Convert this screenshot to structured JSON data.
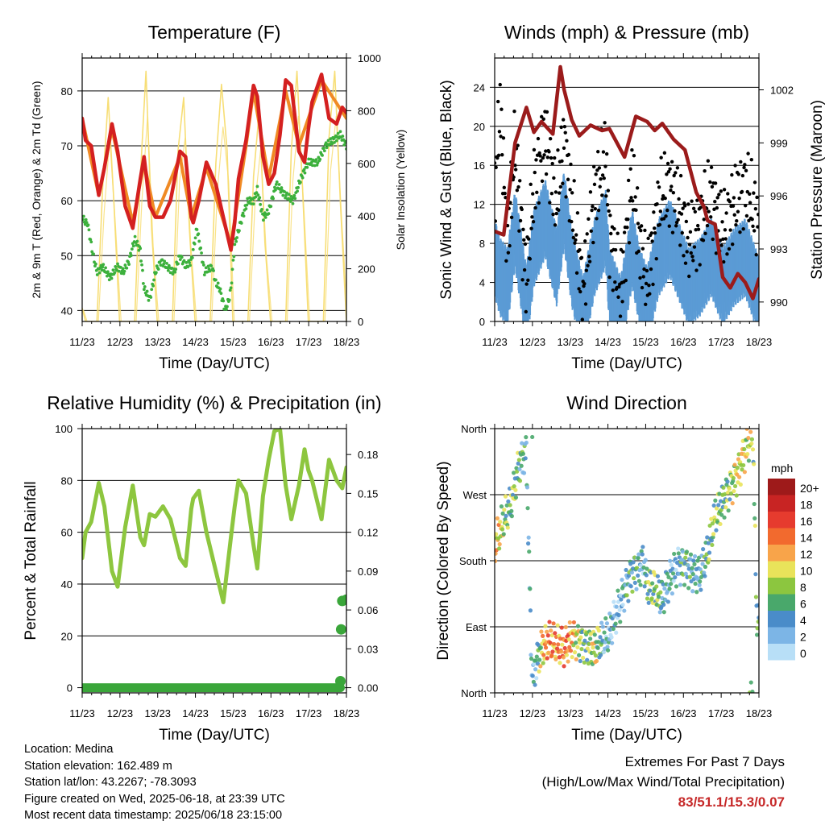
{
  "panels": {
    "temperature": {
      "title": "Temperature (F)",
      "ylabel_left": "2m & 9m T (Red, Orange) & 2m Td (Green)",
      "ylabel_right": "Solar Insolation (Yellow)",
      "xlabel": "Time (Day/UTC)"
    },
    "winds": {
      "title": "Winds (mph) & Pressure (mb)",
      "ylabel_left": "Sonic Wind & Gust (Blue, Black)",
      "ylabel_right": "Station Pressure (Maroon)",
      "xlabel": "Time (Day/UTC)"
    },
    "humidity": {
      "title": "Relative Humidity (%) & Precipitation (in)",
      "ylabel_left": "Percent & Total Rainfall",
      "xlabel": "Time (Day/UTC)"
    },
    "direction": {
      "title": "Wind Direction",
      "ylabel_left": "Direction (Colored By Speed)",
      "xlabel": "Time (Day/UTC)",
      "legend_title": "mph"
    }
  },
  "info": {
    "location": "Location: Medina",
    "elevation": "Station elevation: 162.489 m",
    "latlon": "Station lat/lon: 43.2267; -78.3093",
    "created": "Figure created on Wed, 2025-06-18, at 23:39 UTC",
    "recent": "Most recent data timestamp: 2025/06/18 23:15:00"
  },
  "extremes": {
    "line1": "Extremes For Past 7 Days",
    "line2": "(High/Low/Max Wind/Total Precipitation)",
    "values": "83/51.1/15.3/0.07"
  },
  "colors": {
    "temp2m": "#d42020",
    "temp9m": "#f08a24",
    "dewpoint": "#3cb03c",
    "solar": "#f7dc6f",
    "wind": "#5b9bd5",
    "gust": "#000000",
    "pressure": "#9b1b1b",
    "rh": "#8dc63f",
    "precip": "#3aa63a"
  },
  "chart_data": [
    {
      "type": "line",
      "title": "Temperature (F)",
      "xlabel": "Time (Day/UTC)",
      "ylabel": "2m & 9m T (Red, Orange) & 2m Td (Green)",
      "y2label": "Solar Insolation (Yellow)",
      "x_ticks": [
        "11/23",
        "12/23",
        "13/23",
        "14/23",
        "15/23",
        "16/23",
        "17/23",
        "18/23"
      ],
      "xlim": [
        11.96,
        18.96
      ],
      "ylim": [
        38,
        86
      ],
      "yticks": [
        40,
        50,
        60,
        70,
        80
      ],
      "y2lim": [
        0,
        1000
      ],
      "y2ticks": [
        0,
        200,
        400,
        600,
        800,
        1000
      ],
      "grid": true,
      "series": [
        {
          "name": "2m T",
          "axis": "left",
          "x": [
            11.96,
            12.05,
            12.2,
            12.4,
            12.55,
            12.75,
            12.9,
            13.1,
            13.3,
            13.5,
            13.6,
            13.75,
            13.9,
            14.1,
            14.3,
            14.55,
            14.7,
            14.85,
            14.9,
            15.05,
            15.25,
            15.5,
            15.7,
            15.9,
            16.0,
            16.1,
            16.3,
            16.5,
            16.6,
            16.75,
            16.9,
            17.05,
            17.2,
            17.35,
            17.5,
            17.7,
            17.85,
            17.95,
            18.05,
            18.3,
            18.5,
            18.7,
            18.85,
            18.96
          ],
          "y": [
            75,
            71,
            70,
            61,
            66,
            74,
            69,
            59,
            55,
            64,
            68,
            59,
            57,
            57,
            60,
            69,
            68,
            57,
            56,
            60,
            67,
            63,
            57,
            51,
            56,
            64,
            71,
            81,
            79,
            68,
            63,
            65,
            72,
            82,
            81,
            69,
            67,
            73,
            78,
            83,
            75,
            74,
            77,
            76
          ]
        },
        {
          "name": "9m T",
          "axis": "left",
          "x": [
            11.96,
            12.4,
            12.75,
            13.3,
            13.6,
            13.9,
            14.55,
            14.85,
            15.25,
            15.9,
            16.3,
            16.5,
            16.9,
            17.35,
            17.7,
            18.05,
            18.3,
            18.96
          ],
          "y": [
            75,
            61,
            73,
            56,
            67,
            57,
            68,
            57,
            66,
            52,
            70,
            80,
            64,
            80,
            70,
            77,
            82,
            75
          ]
        },
        {
          "name": "2m Td",
          "axis": "left",
          "x": [
            11.96,
            12.05,
            12.1,
            12.25,
            12.35,
            12.5,
            12.7,
            12.9,
            13.05,
            13.2,
            13.35,
            13.5,
            13.6,
            13.75,
            13.9,
            14.05,
            14.2,
            14.4,
            14.55,
            14.7,
            14.85,
            15.0,
            15.2,
            15.4,
            15.5,
            15.6,
            15.75,
            15.85,
            15.9,
            16.0,
            16.2,
            16.35,
            16.5,
            16.6,
            16.75,
            16.9,
            17.1,
            17.35,
            17.55,
            17.75,
            17.95,
            18.2,
            18.4,
            18.6,
            18.8,
            18.96
          ],
          "y": [
            57,
            56,
            56,
            50,
            47,
            48,
            46,
            48,
            47,
            49,
            53,
            51,
            44,
            42,
            47,
            49,
            48,
            47,
            50,
            48,
            49,
            55,
            47,
            48,
            45,
            44,
            40,
            42,
            44,
            52,
            57,
            60,
            60,
            62,
            57,
            58,
            63,
            61,
            60,
            64,
            67,
            67,
            70,
            71,
            72,
            70
          ]
        },
        {
          "name": "Solar Insolation",
          "axis": "right",
          "x": [
            11.96,
            12.05,
            12.2,
            12.35,
            12.5,
            12.65,
            12.8,
            12.95,
            13.05,
            13.2,
            13.35,
            13.5,
            13.65,
            13.8,
            13.95,
            14.05,
            14.2,
            14.35,
            14.5,
            14.65,
            14.8,
            14.95,
            15.05,
            15.2,
            15.35,
            15.5,
            15.65,
            15.8,
            15.95,
            16.05,
            16.2,
            16.35,
            16.5,
            16.65,
            16.8,
            16.95,
            17.05,
            17.2,
            17.35,
            17.5,
            17.65,
            17.8,
            17.95,
            18.05,
            18.2,
            18.35,
            18.5,
            18.65,
            18.8,
            18.96
          ],
          "y": [
            50,
            0,
            0,
            0,
            500,
            850,
            450,
            0,
            0,
            0,
            0,
            550,
            950,
            350,
            0,
            0,
            0,
            0,
            650,
            850,
            350,
            0,
            0,
            0,
            0,
            600,
            900,
            650,
            0,
            0,
            0,
            0,
            550,
            800,
            300,
            0,
            0,
            0,
            0,
            650,
            950,
            500,
            0,
            0,
            0,
            0,
            700,
            950,
            450,
            0
          ]
        }
      ]
    },
    {
      "type": "line",
      "title": "Winds (mph) & Pressure (mb)",
      "xlabel": "Time (Day/UTC)",
      "ylabel": "Sonic Wind & Gust (Blue, Black)",
      "y2label": "Station Pressure (Maroon)",
      "x_ticks": [
        "11/23",
        "12/23",
        "13/23",
        "14/23",
        "15/23",
        "16/23",
        "17/23",
        "18/23"
      ],
      "xlim": [
        11.96,
        18.96
      ],
      "ylim": [
        0,
        27
      ],
      "yticks": [
        0,
        4,
        8,
        12,
        16,
        20,
        24
      ],
      "y2lim": [
        988.9,
        1003.8
      ],
      "y2ticks": [
        990,
        993,
        996,
        999,
        1002
      ],
      "grid": true,
      "series": [
        {
          "name": "Sonic Wind",
          "axis": "left",
          "x": [
            11.96,
            12.1,
            12.3,
            12.5,
            12.8,
            13.0,
            13.3,
            13.6,
            13.8,
            14.0,
            14.3,
            14.6,
            14.9,
            15.0,
            15.3,
            15.6,
            15.8,
            16.0,
            16.3,
            16.6,
            16.9,
            17.1,
            17.4,
            17.7,
            18.0,
            18.3,
            18.6,
            18.96
          ],
          "y": [
            7,
            5,
            4,
            10,
            2,
            8,
            11,
            6,
            12,
            6,
            1,
            7,
            10,
            4,
            1,
            8,
            4,
            2,
            7,
            9,
            6,
            4,
            5,
            7,
            4,
            6,
            7,
            3
          ]
        },
        {
          "name": "Gust",
          "axis": "left",
          "x": [
            11.96,
            12.1,
            12.3,
            12.5,
            12.8,
            13.0,
            13.3,
            13.6,
            13.8,
            14.0,
            14.3,
            14.6,
            14.9,
            15.0,
            15.3,
            15.6,
            15.8,
            16.0,
            16.3,
            16.6,
            16.9,
            17.1,
            17.4,
            17.7,
            18.0,
            18.3,
            18.6,
            18.96
          ],
          "y": [
            13,
            22,
            8,
            18,
            4,
            14,
            19,
            12,
            19,
            12,
            3,
            13,
            17,
            9,
            3,
            15,
            8,
            4,
            12,
            14,
            11,
            8,
            10,
            13,
            9,
            12,
            14,
            10
          ]
        },
        {
          "name": "Station Pressure",
          "axis": "right",
          "x": [
            11.96,
            12.2,
            12.5,
            12.8,
            13.0,
            13.2,
            13.5,
            13.7,
            13.8,
            14.0,
            14.2,
            14.5,
            14.8,
            15.0,
            15.2,
            15.4,
            15.7,
            16.0,
            16.2,
            16.4,
            16.7,
            17.0,
            17.3,
            17.5,
            17.6,
            17.8,
            18.0,
            18.2,
            18.4,
            18.6,
            18.8,
            18.96
          ],
          "y": [
            994,
            993.8,
            999,
            1001,
            999.6,
            1000.2,
            999.5,
            1003.3,
            1002,
            1000.3,
            999.4,
            1000,
            999.7,
            999.8,
            999,
            998.2,
            1000.5,
            1000.2,
            999.7,
            1000.1,
            999.2,
            998.6,
            996.2,
            995.4,
            994.6,
            994.4,
            991.4,
            990.8,
            991.6,
            991.1,
            990.2,
            991.3
          ]
        }
      ]
    },
    {
      "type": "line",
      "title": "Relative Humidity (%) & Precipitation (in)",
      "xlabel": "Time (Day/UTC)",
      "ylabel": "Percent & Total Rainfall",
      "x_ticks": [
        "11/23",
        "12/23",
        "13/23",
        "14/23",
        "15/23",
        "16/23",
        "17/23",
        "18/23"
      ],
      "xlim": [
        11.96,
        18.96
      ],
      "ylim": [
        -2,
        100
      ],
      "yticks": [
        0,
        20,
        40,
        60,
        80,
        100
      ],
      "y2lim": [
        -0.004,
        0.2
      ],
      "y2ticks": [
        0.0,
        0.03,
        0.06,
        0.09,
        0.12,
        0.15,
        0.18
      ],
      "grid": true,
      "series": [
        {
          "name": "Relative Humidity",
          "axis": "left",
          "x": [
            11.96,
            12.05,
            12.2,
            12.4,
            12.55,
            12.75,
            12.9,
            13.1,
            13.3,
            13.5,
            13.6,
            13.75,
            13.9,
            14.1,
            14.3,
            14.55,
            14.7,
            14.85,
            14.9,
            15.05,
            15.25,
            15.5,
            15.7,
            15.9,
            16.0,
            16.1,
            16.3,
            16.5,
            16.6,
            16.75,
            16.9,
            17.05,
            17.2,
            17.35,
            17.5,
            17.7,
            17.85,
            17.95,
            18.05,
            18.3,
            18.5,
            18.7,
            18.85,
            18.96
          ],
          "y": [
            50,
            60,
            64,
            79,
            70,
            45,
            39,
            62,
            78,
            58,
            55,
            67,
            66,
            70,
            65,
            50,
            47,
            69,
            73,
            76,
            60,
            45,
            33,
            58,
            70,
            80,
            75,
            55,
            46,
            74,
            88,
            99,
            100,
            78,
            65,
            78,
            92,
            84,
            80,
            65,
            88,
            80,
            77,
            85
          ]
        },
        {
          "name": "Total Precipitation",
          "axis": "right",
          "x": [
            11.96,
            12.5,
            13.0,
            13.5,
            14.0,
            14.5,
            15.0,
            15.5,
            16.0,
            16.5,
            17.0,
            17.5,
            18.0,
            18.5,
            18.78,
            18.8,
            18.82,
            18.85,
            18.96
          ],
          "y": [
            0.0,
            0.0,
            0.0,
            0.0,
            0.0,
            0.0,
            0.0,
            0.0,
            0.0,
            0.0,
            0.0,
            0.0,
            0.0,
            0.0,
            0.0,
            0.005,
            0.045,
            0.067,
            0.068
          ]
        }
      ]
    },
    {
      "type": "scatter",
      "title": "Wind Direction",
      "xlabel": "Time (Day/UTC)",
      "ylabel": "Direction (Colored By Speed)",
      "x_ticks": [
        "11/23",
        "12/23",
        "13/23",
        "14/23",
        "15/23",
        "16/23",
        "17/23",
        "18/23"
      ],
      "xlim": [
        11.96,
        18.96
      ],
      "ylim": [
        0,
        360
      ],
      "y_tick_labels": [
        "North",
        "East",
        "South",
        "West",
        "North"
      ],
      "legend": {
        "title": "mph",
        "labels": [
          "20+",
          "18",
          "16",
          "14",
          "12",
          "10",
          "8",
          "6",
          "4",
          "2",
          "0"
        ],
        "colors": [
          "#9e1a1a",
          "#c82423",
          "#e63b2e",
          "#f26a2e",
          "#f8a44a",
          "#e9e35a",
          "#8cc63f",
          "#49a86b",
          "#4a8cc9",
          "#7cb5e6",
          "#b8dff7"
        ]
      },
      "series": [
        {
          "name": "Direction",
          "x": [
            11.96,
            12.1,
            12.2,
            12.35,
            12.45,
            12.6,
            12.8,
            12.95,
            13.05,
            13.2,
            13.4,
            13.6,
            13.8,
            14.0,
            14.2,
            14.4,
            14.6,
            14.8,
            15.0,
            15.2,
            15.4,
            15.6,
            15.8,
            15.9,
            16.0,
            16.2,
            16.4,
            16.6,
            16.8,
            17.0,
            17.2,
            17.4,
            17.6,
            17.8,
            18.0,
            18.2,
            18.4,
            18.6,
            18.8,
            18.9
          ],
          "y": [
            200,
            220,
            235,
            250,
            270,
            310,
            330,
            10,
            40,
            60,
            70,
            65,
            60,
            75,
            70,
            65,
            60,
            70,
            80,
            110,
            140,
            165,
            170,
            180,
            145,
            140,
            125,
            155,
            175,
            175,
            165,
            160,
            190,
            240,
            260,
            280,
            300,
            330,
            355,
            100
          ],
          "speed": [
            12,
            10,
            8,
            6,
            8,
            6,
            4,
            4,
            3,
            10,
            14,
            12,
            14,
            12,
            8,
            6,
            10,
            4,
            3,
            2,
            4,
            5,
            4,
            3,
            6,
            8,
            4,
            4,
            3,
            6,
            4,
            4,
            6,
            8,
            6,
            8,
            10,
            10,
            8,
            6
          ]
        }
      ]
    }
  ]
}
